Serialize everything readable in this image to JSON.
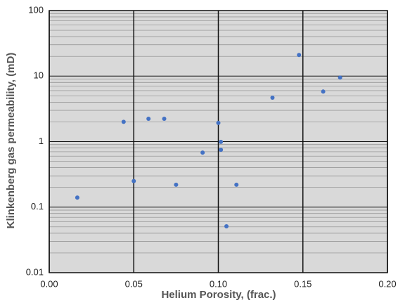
{
  "chart_data": {
    "type": "scatter",
    "x_label": "Helium Porosity, (frac.)",
    "y_label": "Klinkenberg gas permeability, (mD)",
    "color": "#4472c4",
    "log_y": true,
    "grid": true,
    "minor_grid": true,
    "xlim": [
      0,
      0.2
    ],
    "xticks": [
      {
        "value": 0,
        "label": "0.00"
      },
      {
        "value": 0.05,
        "label": "0.05"
      },
      {
        "value": 0.1,
        "label": "0.10"
      },
      {
        "value": 0.15,
        "label": "0.15"
      },
      {
        "value": 0.2,
        "label": "0.20"
      }
    ],
    "ylim": [
      0.01,
      100
    ],
    "yticks": [
      0.01,
      0.1,
      1,
      10,
      100
    ],
    "x": [
      0.0166,
      0.044,
      0.0587,
      0.068,
      0.05,
      0.075,
      0.0907,
      0.1,
      0.1015,
      0.1015,
      0.1107,
      0.1048,
      0.132,
      0.1477,
      0.162,
      0.172
    ],
    "values": [
      0.14,
      2.0,
      2.23,
      2.23,
      0.25,
      0.22,
      0.68,
      1.93,
      0.99,
      0.75,
      0.22,
      0.051,
      4.68,
      21,
      5.8,
      9.5
    ]
  }
}
